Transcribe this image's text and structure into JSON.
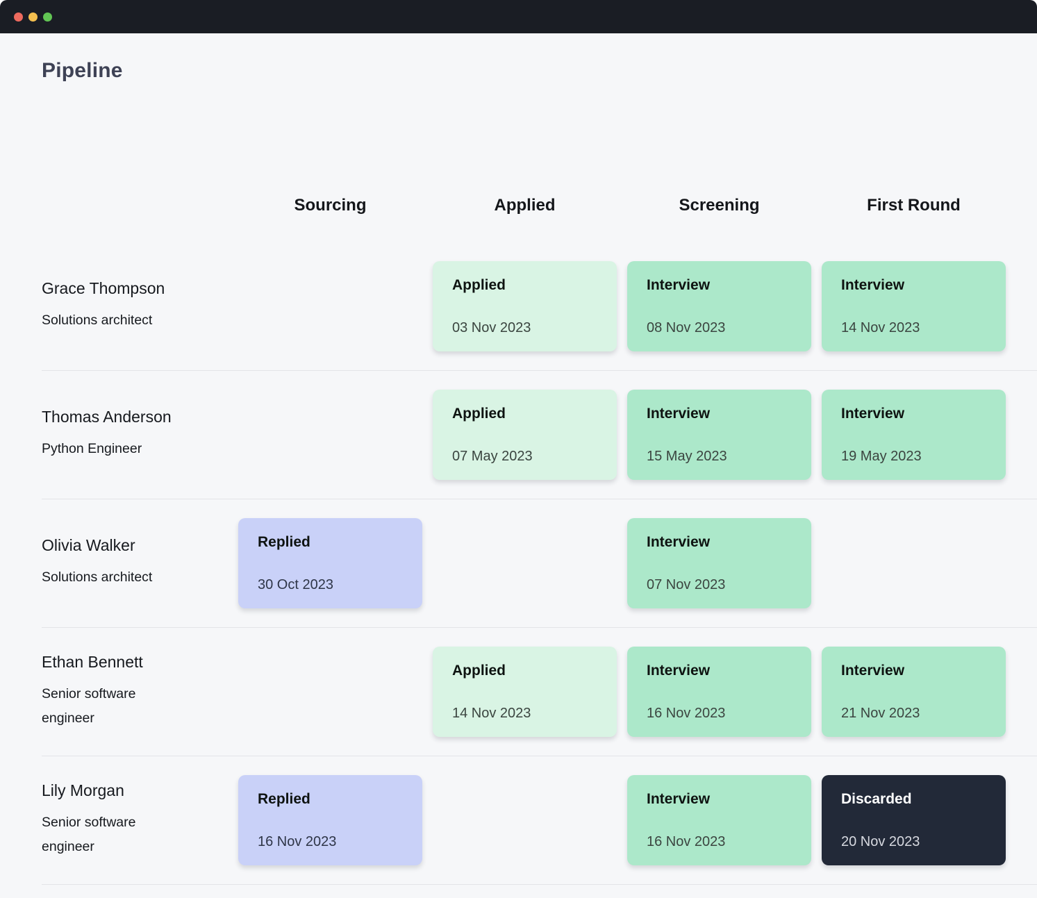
{
  "window": {
    "traffic_lights": {
      "close": "close",
      "minimize": "minimize",
      "zoom": "zoom"
    },
    "title": "Pipeline"
  },
  "columns": {
    "sourcing": "Sourcing",
    "applied": "Applied",
    "screening": "Screening",
    "first_round": "First Round"
  },
  "rows": [
    {
      "name": "Grace Thompson",
      "role": "Solutions architect",
      "cards": {
        "applied": {
          "label": "Applied",
          "date": "03 Nov 2023",
          "variant": "applied"
        },
        "screening": {
          "label": "Interview",
          "date": "08 Nov 2023",
          "variant": "interview"
        },
        "first_round": {
          "label": "Interview",
          "date": "14 Nov 2023",
          "variant": "interview"
        }
      }
    },
    {
      "name": "Thomas Anderson",
      "role": "Python Engineer",
      "cards": {
        "applied": {
          "label": "Applied",
          "date": "07 May 2023",
          "variant": "applied"
        },
        "screening": {
          "label": "Interview",
          "date": "15 May 2023",
          "variant": "interview"
        },
        "first_round": {
          "label": "Interview",
          "date": "19 May 2023",
          "variant": "interview"
        }
      }
    },
    {
      "name": "Olivia Walker",
      "role": "Solutions architect",
      "cards": {
        "sourcing": {
          "label": "Replied",
          "date": "30 Oct 2023",
          "variant": "replied"
        },
        "screening": {
          "label": "Interview",
          "date": "07 Nov 2023",
          "variant": "interview"
        }
      }
    },
    {
      "name": "Ethan Bennett",
      "role": "Senior software engineer",
      "cards": {
        "applied": {
          "label": "Applied",
          "date": "14 Nov 2023",
          "variant": "applied"
        },
        "screening": {
          "label": "Interview",
          "date": "16 Nov 2023",
          "variant": "interview"
        },
        "first_round": {
          "label": "Interview",
          "date": "21 Nov 2023",
          "variant": "interview"
        }
      }
    },
    {
      "name": "Lily Morgan",
      "role": "Senior software engineer",
      "cards": {
        "sourcing": {
          "label": "Replied",
          "date": "16 Nov 2023",
          "variant": "replied"
        },
        "screening": {
          "label": "Interview",
          "date": "16 Nov 2023",
          "variant": "interview"
        },
        "first_round": {
          "label": "Discarded",
          "date": "20 Nov 2023",
          "variant": "discarded"
        }
      }
    }
  ],
  "colors": {
    "titlebar_bg": "#1a1d24",
    "page_bg": "#f6f7f9",
    "status_applied": "#d9f4e4",
    "status_interview": "#ace8ca",
    "status_replied": "#c9d1f8",
    "status_discarded": "#222938",
    "traffic_red": "#ed6a5e",
    "traffic_yellow": "#f4bf4f",
    "traffic_green": "#62c554",
    "divider": "#e3e4e8",
    "heading_text": "#3e4255"
  }
}
